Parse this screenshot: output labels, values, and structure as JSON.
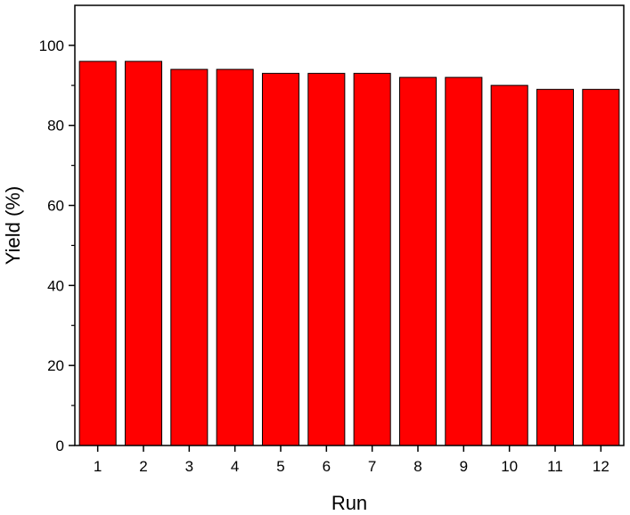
{
  "chart_data": {
    "type": "bar",
    "categories": [
      "1",
      "2",
      "3",
      "4",
      "5",
      "6",
      "7",
      "8",
      "9",
      "10",
      "11",
      "12"
    ],
    "values": [
      96,
      96,
      94,
      94,
      93,
      93,
      93,
      92,
      92,
      90,
      89,
      89
    ],
    "xlabel": "Run",
    "ylabel": "Yield (%)",
    "ylim": [
      0,
      110
    ],
    "yticks": [
      0,
      20,
      40,
      60,
      80,
      100
    ],
    "grid": false,
    "legend": "none",
    "bar_color": "#ff0000",
    "bar_edge_color": "#000000"
  }
}
